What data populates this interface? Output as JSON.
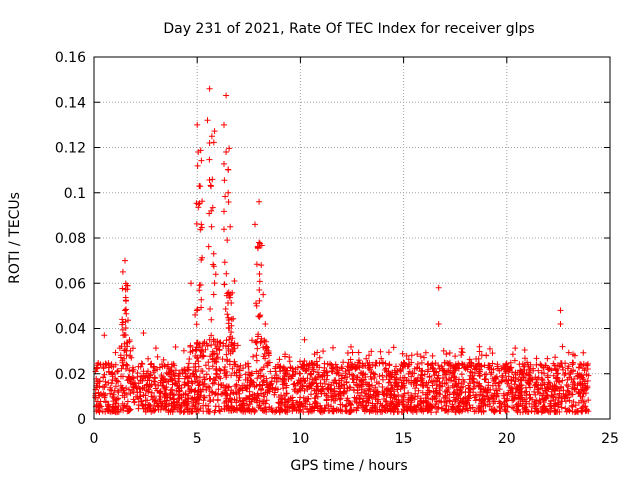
{
  "chart_data": {
    "type": "scatter",
    "title": "Day 231 of 2021, Rate Of TEC Index for receiver glps",
    "xlabel": "GPS time / hours",
    "ylabel": "ROTI / TECUs",
    "xlim": [
      0,
      25
    ],
    "ylim": [
      0,
      0.16
    ],
    "xticks": [
      0,
      5,
      10,
      15,
      20,
      25
    ],
    "xtick_labels": [
      "0",
      "5",
      "10",
      "15",
      "20",
      "25"
    ],
    "yticks": [
      0,
      0.02,
      0.04,
      0.06,
      0.08,
      0.1,
      0.12,
      0.14,
      0.16
    ],
    "ytick_labels": [
      "0",
      "0.02",
      "0.04",
      "0.06",
      "0.08",
      "0.1",
      "0.12",
      "0.14",
      "0.16"
    ],
    "grid": true,
    "marker": "+",
    "color": "#ff0000",
    "series": [
      {
        "name": "ROTI",
        "baseline_band": [
          0.003,
          0.025
        ],
        "peaks": [
          {
            "x": 0.5,
            "y": 0.037
          },
          {
            "x": 1.4,
            "y": 0.065
          },
          {
            "x": 1.5,
            "y": 0.07
          },
          {
            "x": 1.6,
            "y": 0.059
          },
          {
            "x": 1.5,
            "y": 0.048
          },
          {
            "x": 2.4,
            "y": 0.038
          },
          {
            "x": 4.7,
            "y": 0.06
          },
          {
            "x": 4.9,
            "y": 0.046
          },
          {
            "x": 5.0,
            "y": 0.13
          },
          {
            "x": 5.05,
            "y": 0.118
          },
          {
            "x": 5.1,
            "y": 0.103
          },
          {
            "x": 5.2,
            "y": 0.086
          },
          {
            "x": 5.5,
            "y": 0.132
          },
          {
            "x": 5.6,
            "y": 0.146
          },
          {
            "x": 5.6,
            "y": 0.122
          },
          {
            "x": 5.7,
            "y": 0.085
          },
          {
            "x": 5.8,
            "y": 0.073
          },
          {
            "x": 5.9,
            "y": 0.064
          },
          {
            "x": 6.3,
            "y": 0.13
          },
          {
            "x": 6.4,
            "y": 0.143
          },
          {
            "x": 6.4,
            "y": 0.118
          },
          {
            "x": 6.5,
            "y": 0.1
          },
          {
            "x": 6.6,
            "y": 0.085
          },
          {
            "x": 6.8,
            "y": 0.061
          },
          {
            "x": 7.8,
            "y": 0.086
          },
          {
            "x": 8.0,
            "y": 0.096
          },
          {
            "x": 8.0,
            "y": 0.078
          },
          {
            "x": 8.1,
            "y": 0.068
          },
          {
            "x": 8.2,
            "y": 0.055
          },
          {
            "x": 8.3,
            "y": 0.042
          },
          {
            "x": 10.2,
            "y": 0.035
          },
          {
            "x": 11.1,
            "y": 0.03
          },
          {
            "x": 16.7,
            "y": 0.058
          },
          {
            "x": 16.7,
            "y": 0.042
          },
          {
            "x": 19.0,
            "y": 0.028
          },
          {
            "x": 22.6,
            "y": 0.048
          },
          {
            "x": 22.6,
            "y": 0.042
          },
          {
            "x": 22.7,
            "y": 0.032
          },
          {
            "x": 23.3,
            "y": 0.028
          }
        ]
      }
    ]
  }
}
